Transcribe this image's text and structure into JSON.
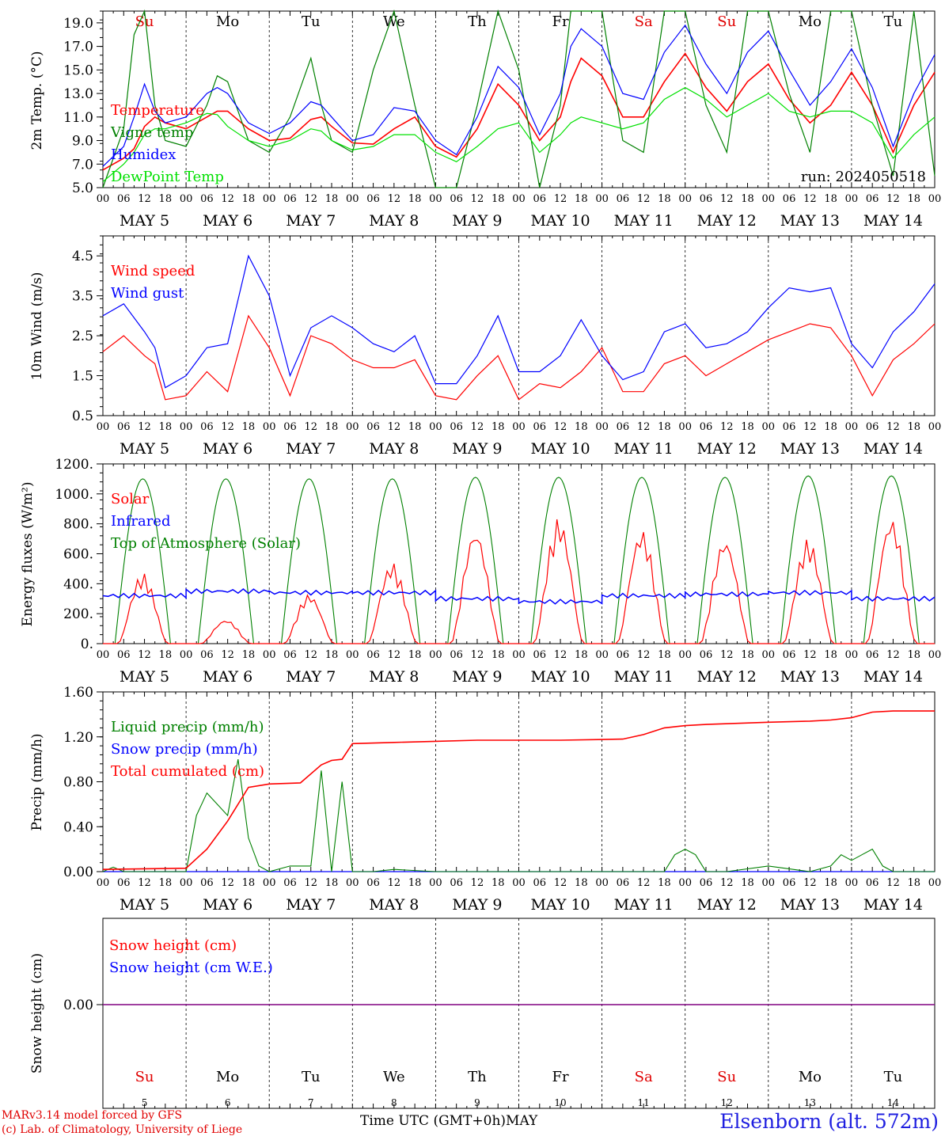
{
  "days": {
    "weekdays": [
      "Su",
      "Mo",
      "Tu",
      "We",
      "Th",
      "Fr",
      "Sa",
      "Su",
      "Mo",
      "Tu"
    ],
    "weekday_colors": [
      "#e00000",
      "#000000",
      "#000000",
      "#000000",
      "#000000",
      "#000000",
      "#e00000",
      "#e00000",
      "#000000",
      "#000000"
    ],
    "date_labels": [
      "MAY  5",
      "MAY  6",
      "MAY  7",
      "MAY  8",
      "MAY  9",
      "MAY 10",
      "MAY 11",
      "MAY 12",
      "MAY 13",
      "MAY 14"
    ],
    "day_numbers": [
      "5",
      "6",
      "7",
      "8",
      "9",
      "10",
      "11",
      "12",
      "13",
      "14"
    ],
    "hour_ticks": [
      "00",
      "06",
      "12",
      "18"
    ],
    "final_tick": "00"
  },
  "colors": {
    "red": "#ff0000",
    "green": "#008000",
    "lightgreen": "#00e000",
    "blue": "#0000ff",
    "purple": "#800080"
  },
  "footer": {
    "credit_line1": "MARv3.14 model forced by GFS",
    "credit_line2": "(c) Lab. of Climatology, University of Liege",
    "xaxis_title": "Time UTC (GMT+0h)",
    "month": "MAY",
    "station": "Elsenborn (alt. 572m)"
  },
  "chart_data": [
    {
      "type": "line",
      "ylabel": "2m Temp. (°C)",
      "ylim": [
        5,
        20
      ],
      "yticks": [
        "5.0",
        "7.0",
        "9.0",
        "11.0",
        "13.0",
        "15.0",
        "17.0",
        "19.0"
      ],
      "annotation": "run: 2024050518",
      "x_unit": "hours since 2024-05-05 00 UTC",
      "series": [
        {
          "name": "Temperature",
          "color": "red",
          "x": [
            0,
            6,
            9,
            12,
            15,
            18,
            24,
            30,
            33,
            36,
            42,
            48,
            54,
            60,
            63,
            66,
            72,
            78,
            84,
            90,
            96,
            102,
            108,
            114,
            120,
            126,
            132,
            135,
            138,
            144,
            150,
            156,
            162,
            168,
            174,
            180,
            186,
            192,
            198,
            204,
            210,
            216,
            222,
            228,
            234,
            240
          ],
          "y": [
            6.5,
            7.5,
            8.3,
            10.2,
            11.0,
            10.5,
            10.0,
            11.0,
            11.5,
            11.5,
            10.0,
            9.0,
            9.2,
            10.8,
            11.0,
            10.2,
            8.8,
            8.7,
            10.0,
            11.0,
            8.5,
            7.6,
            10.0,
            13.8,
            12.0,
            9.0,
            11.0,
            14.0,
            16.0,
            14.5,
            11.0,
            11.0,
            14.0,
            16.4,
            13.5,
            11.5,
            14.0,
            15.5,
            12.5,
            10.5,
            12.0,
            14.8,
            12.0,
            8.0,
            12.0,
            14.8
          ]
        },
        {
          "name": "Vigne temp",
          "color": "green",
          "x": [
            0,
            6,
            9,
            12,
            15,
            18,
            24,
            30,
            33,
            36,
            42,
            48,
            54,
            60,
            63,
            66,
            72,
            78,
            84,
            90,
            96,
            102,
            108,
            114,
            120,
            126,
            132,
            135,
            138,
            144,
            150,
            156,
            162,
            168,
            174,
            180,
            186,
            192,
            198,
            204,
            210,
            216,
            222,
            228,
            234,
            240
          ],
          "y": [
            5.0,
            10.0,
            18.0,
            20.0,
            12.0,
            9.0,
            8.5,
            12.0,
            14.5,
            14.0,
            9.0,
            8.0,
            11.0,
            16.0,
            12.0,
            9.0,
            8.0,
            15.0,
            20.0,
            12.0,
            5.0,
            5.0,
            12.0,
            20.0,
            15.0,
            5.0,
            12.0,
            20.0,
            20.0,
            20.0,
            9.0,
            8.0,
            20.0,
            20.0,
            12.0,
            8.0,
            20.0,
            20.0,
            13.0,
            8.0,
            20.0,
            20.0,
            12.0,
            6.0,
            20.0,
            6.0
          ]
        },
        {
          "name": "Humidex",
          "color": "blue",
          "x": [
            0,
            6,
            9,
            12,
            15,
            18,
            24,
            30,
            33,
            36,
            42,
            48,
            54,
            60,
            63,
            66,
            72,
            78,
            84,
            90,
            96,
            102,
            108,
            114,
            120,
            126,
            132,
            135,
            138,
            144,
            150,
            156,
            162,
            168,
            174,
            180,
            186,
            192,
            198,
            204,
            210,
            216,
            222,
            228,
            234,
            240
          ],
          "y": [
            6.8,
            8.5,
            11.0,
            13.8,
            11.5,
            10.5,
            11.0,
            13.0,
            13.5,
            13.0,
            10.5,
            9.6,
            10.5,
            12.3,
            12.0,
            11.0,
            9.0,
            9.5,
            11.8,
            11.5,
            9.0,
            7.8,
            11.0,
            15.3,
            13.5,
            9.5,
            13.0,
            17.0,
            18.5,
            17.0,
            13.0,
            12.5,
            16.5,
            18.8,
            15.5,
            13.0,
            16.5,
            18.3,
            15.0,
            12.0,
            14.0,
            16.8,
            13.5,
            8.5,
            13.0,
            16.3
          ]
        },
        {
          "name": "DewPoint Temp",
          "color": "lightgreen",
          "x": [
            0,
            6,
            9,
            12,
            15,
            18,
            24,
            30,
            33,
            36,
            42,
            48,
            54,
            60,
            63,
            66,
            72,
            78,
            84,
            90,
            96,
            102,
            108,
            114,
            120,
            126,
            132,
            135,
            138,
            144,
            150,
            156,
            162,
            168,
            174,
            180,
            186,
            192,
            198,
            204,
            210,
            216,
            222,
            228,
            234,
            240
          ],
          "y": [
            5.5,
            7.0,
            8.0,
            9.5,
            10.0,
            10.0,
            10.5,
            11.3,
            11.2,
            10.2,
            9.0,
            8.5,
            9.0,
            10.0,
            9.8,
            9.0,
            8.2,
            8.5,
            9.5,
            9.5,
            8.0,
            7.2,
            8.5,
            10.0,
            10.5,
            8.0,
            9.5,
            10.5,
            11.0,
            10.5,
            10.0,
            10.5,
            12.5,
            13.5,
            12.5,
            11.0,
            12.0,
            13.0,
            11.5,
            11.0,
            11.5,
            11.5,
            10.5,
            7.5,
            9.5,
            11.0
          ]
        }
      ]
    },
    {
      "type": "line",
      "ylabel": "10m Wind (m/s)",
      "ylim": [
        0.5,
        5
      ],
      "yticks": [
        "0.5",
        "1.5",
        "2.5",
        "3.5",
        "4.5"
      ],
      "x_unit": "hours since 2024-05-05 00 UTC",
      "series": [
        {
          "name": "Wind speed",
          "color": "red",
          "x": [
            0,
            6,
            12,
            15,
            18,
            24,
            30,
            36,
            42,
            48,
            54,
            60,
            66,
            72,
            78,
            84,
            90,
            96,
            102,
            108,
            114,
            120,
            126,
            132,
            138,
            144,
            150,
            156,
            162,
            168,
            174,
            180,
            186,
            192,
            198,
            204,
            210,
            216,
            222,
            228,
            234,
            240
          ],
          "y": [
            2.1,
            2.5,
            2.0,
            1.8,
            0.9,
            1.0,
            1.6,
            1.1,
            3.0,
            2.2,
            1.0,
            2.5,
            2.3,
            1.9,
            1.7,
            1.7,
            1.9,
            1.0,
            0.9,
            1.5,
            2.0,
            0.9,
            1.3,
            1.2,
            1.6,
            2.2,
            1.1,
            1.1,
            1.8,
            2.0,
            1.5,
            1.8,
            2.1,
            2.4,
            2.6,
            2.8,
            2.7,
            2.0,
            1.0,
            1.9,
            2.3,
            2.8
          ]
        },
        {
          "name": "Wind gust",
          "color": "blue",
          "x": [
            0,
            6,
            12,
            15,
            18,
            24,
            30,
            36,
            42,
            48,
            54,
            60,
            66,
            72,
            78,
            84,
            90,
            96,
            102,
            108,
            114,
            120,
            126,
            132,
            138,
            144,
            150,
            156,
            162,
            168,
            174,
            180,
            186,
            192,
            198,
            204,
            210,
            216,
            222,
            228,
            234,
            240
          ],
          "y": [
            3.0,
            3.3,
            2.6,
            2.2,
            1.2,
            1.5,
            2.2,
            2.3,
            4.5,
            3.5,
            1.5,
            2.7,
            3.0,
            2.7,
            2.3,
            2.1,
            2.5,
            1.3,
            1.3,
            2.0,
            3.0,
            1.6,
            1.6,
            2.0,
            2.9,
            2.0,
            1.4,
            1.6,
            2.6,
            2.8,
            2.2,
            2.3,
            2.6,
            3.2,
            3.7,
            3.6,
            3.7,
            2.3,
            1.7,
            2.6,
            3.1,
            3.8
          ]
        }
      ]
    },
    {
      "type": "line",
      "ylabel": "Energy fluxes (W/m²)",
      "ylim": [
        0,
        1200
      ],
      "yticks": [
        "0.",
        "200.",
        "400.",
        "600.",
        "800.",
        "1000.",
        "1200."
      ],
      "x_unit": "hours since 2024-05-05 00 UTC",
      "series": [
        {
          "name": "Solar",
          "color": "red",
          "x_day_peaks": [
            10.5,
            34.5,
            58.5,
            82.5,
            106.5,
            130.5,
            154.5,
            178.5,
            202.5,
            226.5
          ],
          "peak_values": [
            470,
            160,
            330,
            540,
            760,
            840,
            760,
            700,
            700,
            840
          ]
        },
        {
          "name": "Infrared",
          "color": "blue",
          "values_approx": [
            320,
            350,
            340,
            340,
            300,
            280,
            320,
            330,
            340,
            300
          ]
        },
        {
          "name": "Top of Atmosphere (Solar)",
          "color": "green",
          "peak_values": [
            1100,
            1100,
            1100,
            1100,
            1110,
            1110,
            1110,
            1110,
            1120,
            1120
          ]
        }
      ]
    },
    {
      "type": "line",
      "ylabel": "Precip (mm/h)",
      "ylim": [
        0,
        1.6
      ],
      "yticks": [
        "0.00",
        "0.40",
        "0.80",
        "1.20",
        "1.60"
      ],
      "x_unit": "hours since 2024-05-05 00 UTC",
      "series": [
        {
          "name": "Liquid precip (mm/h)",
          "color": "green",
          "x": [
            0,
            3,
            6,
            24,
            27,
            30,
            33,
            36,
            39,
            42,
            45,
            48,
            54,
            60,
            63,
            66,
            69,
            72,
            75,
            78,
            84,
            96,
            162,
            165,
            168,
            171,
            174,
            180,
            192,
            204,
            210,
            213,
            216,
            219,
            222,
            225,
            228,
            240
          ],
          "y": [
            0,
            0.04,
            0,
            0,
            0.5,
            0.7,
            0.6,
            0.5,
            1.0,
            0.3,
            0.05,
            0,
            0.05,
            0.05,
            0.9,
            0,
            0.8,
            0,
            0,
            0,
            0.02,
            0,
            0,
            0.15,
            0.2,
            0.15,
            0,
            0,
            0.05,
            0,
            0.05,
            0.15,
            0.1,
            0.15,
            0.2,
            0.05,
            0,
            0
          ]
        },
        {
          "name": "Snow precip (mm/h)",
          "color": "blue",
          "x": [
            0,
            240
          ],
          "y": [
            0,
            0
          ]
        },
        {
          "name": "Total cumulated (cm)",
          "color": "red",
          "x": [
            0,
            24,
            30,
            36,
            42,
            48,
            57,
            63,
            66,
            69,
            72,
            84,
            96,
            108,
            120,
            132,
            150,
            156,
            162,
            168,
            174,
            192,
            204,
            210,
            216,
            222,
            228,
            240
          ],
          "y": [
            0.02,
            0.03,
            0.2,
            0.45,
            0.75,
            0.78,
            0.79,
            0.95,
            0.99,
            1.0,
            1.14,
            1.15,
            1.16,
            1.17,
            1.17,
            1.17,
            1.18,
            1.22,
            1.28,
            1.3,
            1.31,
            1.33,
            1.34,
            1.35,
            1.37,
            1.42,
            1.43,
            1.43
          ]
        }
      ]
    },
    {
      "type": "line",
      "ylabel": "Snow height (cm)",
      "yticks": [
        "0.00"
      ],
      "x_unit": "hours since 2024-05-05 00 UTC",
      "series": [
        {
          "name": "Snow height (cm)",
          "color": "red",
          "x": [
            0,
            240
          ],
          "y": [
            0,
            0
          ]
        },
        {
          "name": "Snow height (cm W.E.)",
          "color": "blue",
          "x": [
            0,
            240
          ],
          "y": [
            0,
            0
          ]
        }
      ]
    }
  ]
}
